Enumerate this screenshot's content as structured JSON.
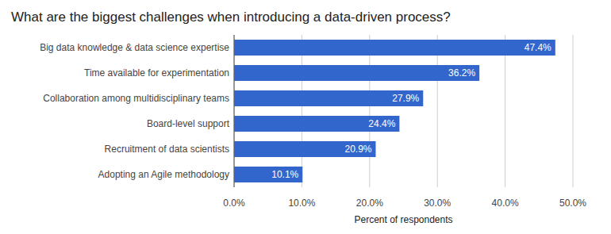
{
  "chart_data": {
    "type": "bar",
    "title": "What are the biggest challenges when introducing a data-driven process?",
    "orientation": "horizontal",
    "categories": [
      "Big data knowledge & data science expertise",
      "Time available for experimentation",
      "Collaboration among multidisciplinary teams",
      "Board-level support",
      "Recruitment of data scientists",
      "Adopting an Agile methodology"
    ],
    "values": [
      47.4,
      36.2,
      27.9,
      24.4,
      20.9,
      10.1
    ],
    "value_labels": [
      "47.4%",
      "36.2%",
      "27.9%",
      "24.4%",
      "20.9%",
      "10.1%"
    ],
    "color": "#3366cc",
    "xlabel": "Percent of respondents",
    "xlim": [
      0,
      50
    ],
    "xticks": [
      {
        "value": 0,
        "label": "0.0%"
      },
      {
        "value": 10,
        "label": "10.0%"
      },
      {
        "value": 20,
        "label": "20.0%"
      },
      {
        "value": 30,
        "label": "30.0%"
      },
      {
        "value": 40,
        "label": "40.0%"
      },
      {
        "value": 50,
        "label": "50.0%"
      }
    ],
    "grid": true,
    "data_labels": true
  }
}
